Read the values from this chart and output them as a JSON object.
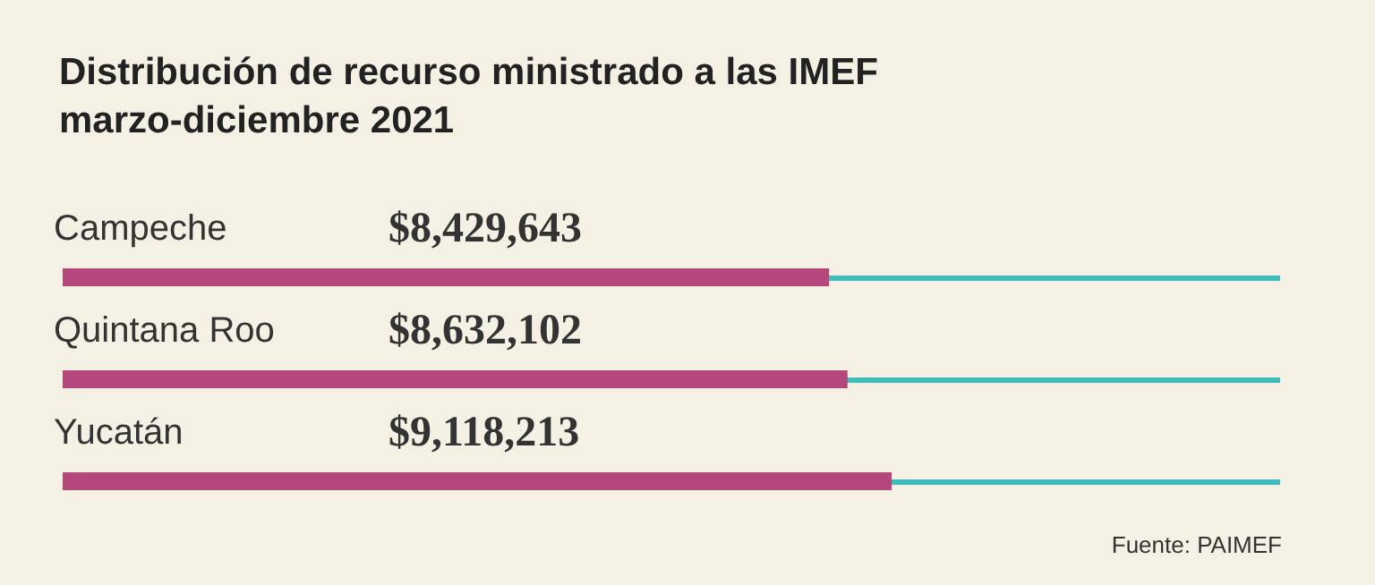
{
  "chart_data": {
    "type": "bar",
    "orientation": "horizontal",
    "title": "Distribución de recurso ministrado a las IMEF\nmarzo-diciembre 2021",
    "categories": [
      "Campeche",
      "Quintana Roo",
      "Yucatán"
    ],
    "values": [
      8429643,
      8632102,
      9118213
    ],
    "value_labels": [
      "$8,429,643",
      "$8,632,102",
      "$9,118,213"
    ],
    "color": "#b4487d",
    "xlim": [
      0,
      13390000
    ],
    "grid": "y",
    "annotations": [
      "Fuente: PAIMEF"
    ]
  }
}
